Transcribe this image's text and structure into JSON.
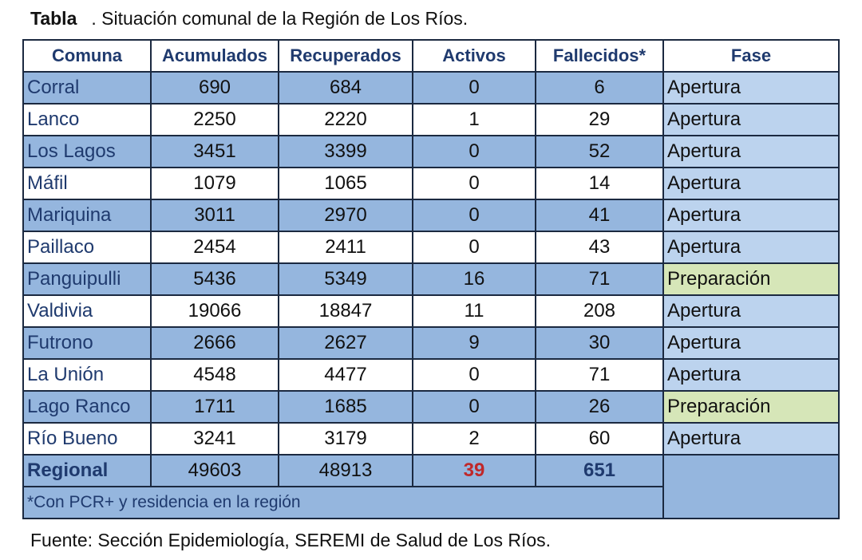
{
  "header": {
    "label": "Tabla",
    "title": ". Situación comunal de la Región de Los Ríos."
  },
  "table": {
    "columns": [
      "Comuna",
      "Acumulados",
      "Recuperados",
      "Activos",
      "Fallecidos*",
      "Fase"
    ],
    "rows": [
      [
        "Corral",
        690,
        684,
        0,
        6,
        "Apertura"
      ],
      [
        "Lanco",
        2250,
        2220,
        1,
        29,
        "Apertura"
      ],
      [
        "Los Lagos",
        3451,
        3399,
        0,
        52,
        "Apertura"
      ],
      [
        "Máfil",
        1079,
        1065,
        0,
        14,
        "Apertura"
      ],
      [
        "Mariquina",
        3011,
        2970,
        0,
        41,
        "Apertura"
      ],
      [
        "Paillaco",
        2454,
        2411,
        0,
        43,
        "Apertura"
      ],
      [
        "Panguipulli",
        5436,
        5349,
        16,
        71,
        "Preparación"
      ],
      [
        "Valdivia",
        19066,
        18847,
        11,
        208,
        "Apertura"
      ],
      [
        "Futrono",
        2666,
        2627,
        9,
        30,
        "Apertura"
      ],
      [
        "La Unión",
        4548,
        4477,
        0,
        71,
        "Apertura"
      ],
      [
        "Lago Ranco",
        1711,
        1685,
        0,
        26,
        "Preparación"
      ],
      [
        "Río Bueno",
        3241,
        3179,
        2,
        60,
        "Apertura"
      ]
    ],
    "total": [
      "Regional",
      49603,
      48913,
      39,
      651
    ],
    "note": "*Con PCR+ y residencia en la región"
  },
  "source": "Fuente: Sección Epidemiología, SEREMI de Salud de Los Ríos."
}
